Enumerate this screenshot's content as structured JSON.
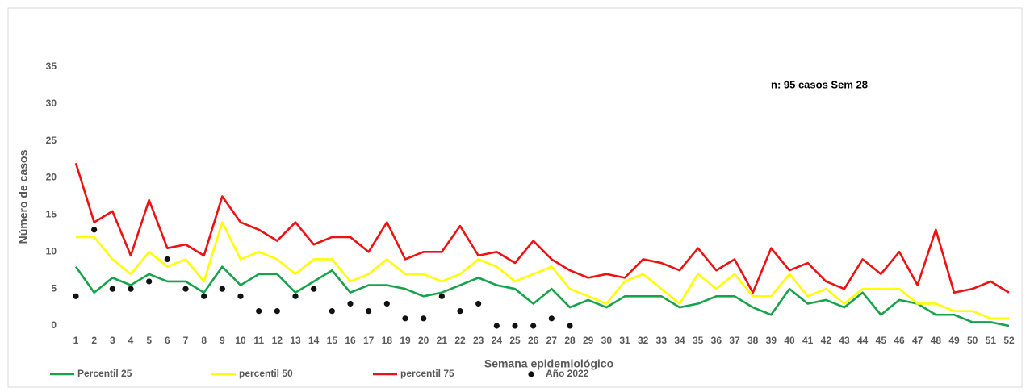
{
  "chart_data": {
    "type": "line",
    "annotation": "n: 95  casos Sem 28",
    "xlabel": "Semana epidemiológico",
    "ylabel": "Número de casos",
    "categories": [
      1,
      2,
      3,
      4,
      5,
      6,
      7,
      8,
      9,
      10,
      11,
      12,
      13,
      14,
      15,
      16,
      17,
      18,
      19,
      20,
      21,
      22,
      23,
      24,
      25,
      26,
      27,
      28,
      29,
      30,
      31,
      32,
      33,
      34,
      35,
      36,
      37,
      38,
      39,
      40,
      41,
      42,
      43,
      44,
      45,
      46,
      47,
      48,
      49,
      50,
      51,
      52
    ],
    "ylim": [
      0,
      35
    ],
    "yticks": [
      0,
      5,
      10,
      15,
      20,
      25,
      30,
      35
    ],
    "legend": "bottom-left",
    "series": [
      {
        "name": "Percentil 25",
        "color": "#16a34a",
        "type": "line",
        "values": [
          8,
          4.5,
          6.5,
          5.5,
          7,
          6,
          6,
          4.5,
          8,
          5.5,
          7,
          7,
          4.5,
          6,
          7.5,
          4.5,
          5.5,
          5.5,
          5,
          4,
          4.5,
          5.5,
          6.5,
          5.5,
          5,
          3,
          5,
          2.5,
          3.5,
          2.5,
          4,
          4,
          4,
          2.5,
          3,
          4,
          4,
          2.5,
          1.5,
          5,
          3,
          3.5,
          2.5,
          4.5,
          1.5,
          3.5,
          3,
          1.5,
          1.5,
          0.5,
          0.5,
          0
        ]
      },
      {
        "name": "percentil 50",
        "color": "#ffff00",
        "type": "line",
        "values": [
          12,
          12,
          9,
          7,
          10,
          8,
          9,
          6,
          14,
          9,
          10,
          9,
          7,
          9,
          9,
          6,
          7,
          9,
          7,
          7,
          6,
          7,
          9,
          8,
          6,
          7,
          8,
          5,
          4,
          3,
          6,
          7,
          5,
          3,
          7,
          5,
          7,
          4,
          4,
          7,
          4,
          5,
          3,
          5,
          5,
          5,
          3,
          3,
          2,
          2,
          1,
          1
        ]
      },
      {
        "name": "percentil 75",
        "color": "#ee1111",
        "type": "line",
        "values": [
          22,
          14,
          15.5,
          9.5,
          17,
          10.5,
          11,
          9.5,
          17.5,
          14,
          13,
          11.5,
          14,
          11,
          12,
          12,
          10,
          14,
          9,
          10,
          10,
          13.5,
          9.5,
          10,
          8.5,
          11.5,
          9,
          7.5,
          6.5,
          7,
          6.5,
          9,
          8.5,
          7.5,
          10.5,
          7.5,
          9,
          4.5,
          10.5,
          7.5,
          8.5,
          6,
          5,
          9,
          7,
          10,
          5.5,
          13,
          4.5,
          5,
          6,
          4.5
        ]
      },
      {
        "name": "Año 2022",
        "color": "#111111",
        "type": "scatter",
        "values": [
          4,
          13,
          5,
          5,
          6,
          9,
          5,
          4,
          5,
          4,
          2,
          2,
          4,
          5,
          2,
          3,
          2,
          3,
          1,
          1,
          4,
          2,
          3,
          0,
          0,
          0,
          1,
          0,
          null,
          null,
          null,
          null,
          null,
          null,
          null,
          null,
          null,
          null,
          null,
          null,
          null,
          null,
          null,
          null,
          null,
          null,
          null,
          null,
          null,
          null,
          null,
          null
        ]
      }
    ]
  }
}
